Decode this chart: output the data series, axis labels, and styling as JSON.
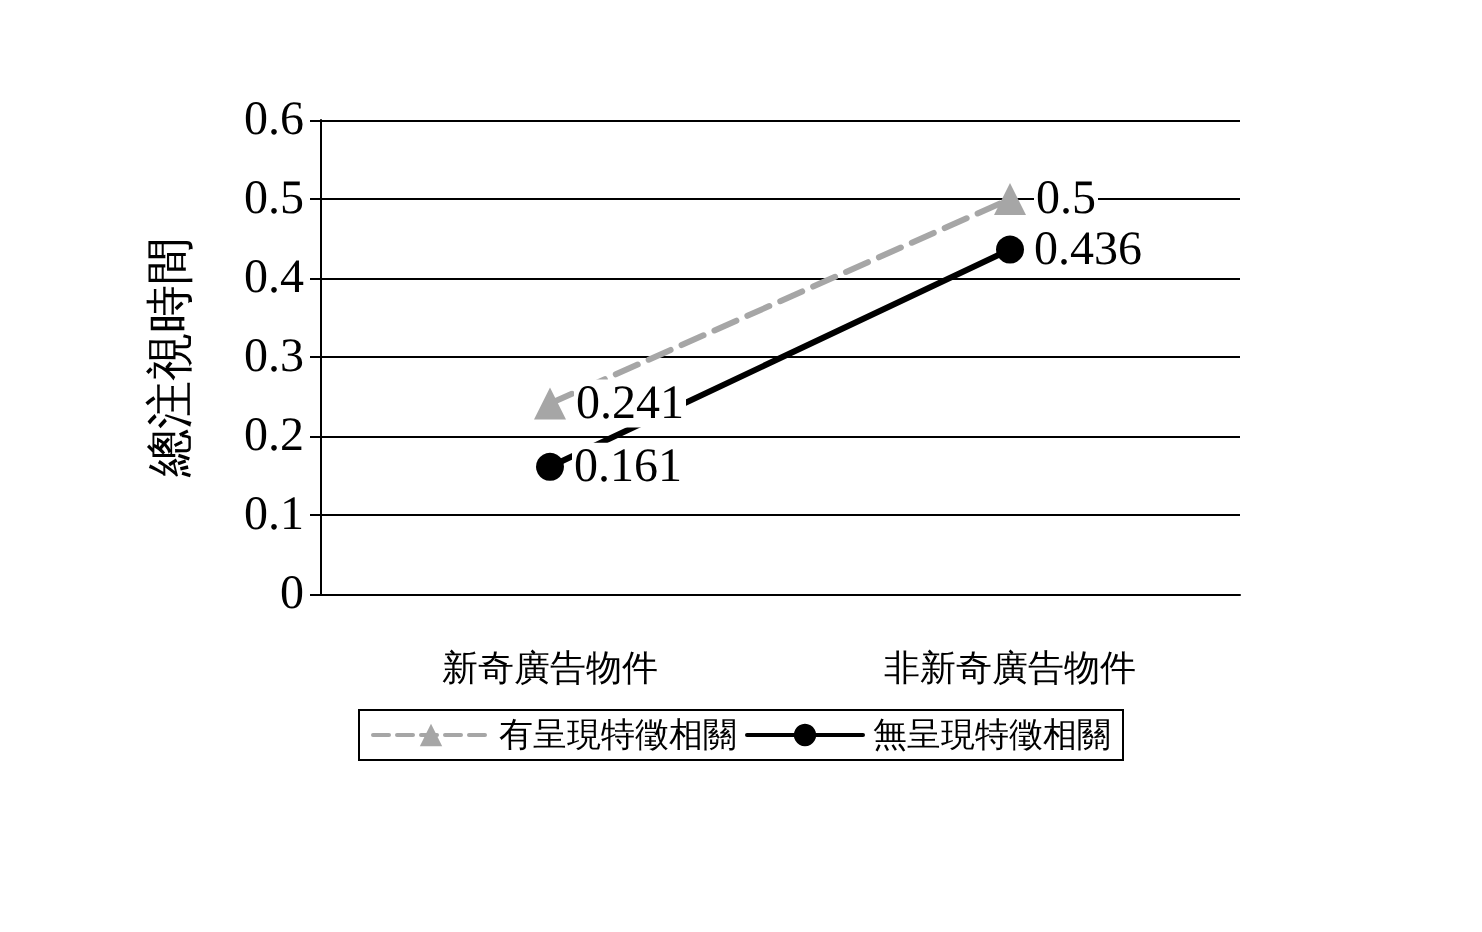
{
  "chart_data": {
    "type": "line",
    "ylabel": "總注視時間",
    "categories": [
      "新奇廣告物件",
      "非新奇廣告物件"
    ],
    "series": [
      {
        "name": "有呈現特徵相關",
        "color": "#a6a6a6",
        "values": [
          0.241,
          0.5
        ],
        "marker": "triangle",
        "line_style": "dashed"
      },
      {
        "name": "無呈現特徵相關",
        "color": "#000000",
        "values": [
          0.161,
          0.436
        ],
        "marker": "circle",
        "line_style": "solid"
      }
    ],
    "ylim": [
      0,
      0.6
    ],
    "yticks": [
      0,
      0.1,
      0.2,
      0.3,
      0.4,
      0.5,
      0.6
    ],
    "grid": "y",
    "legend": "bottom",
    "data_labels": true
  }
}
